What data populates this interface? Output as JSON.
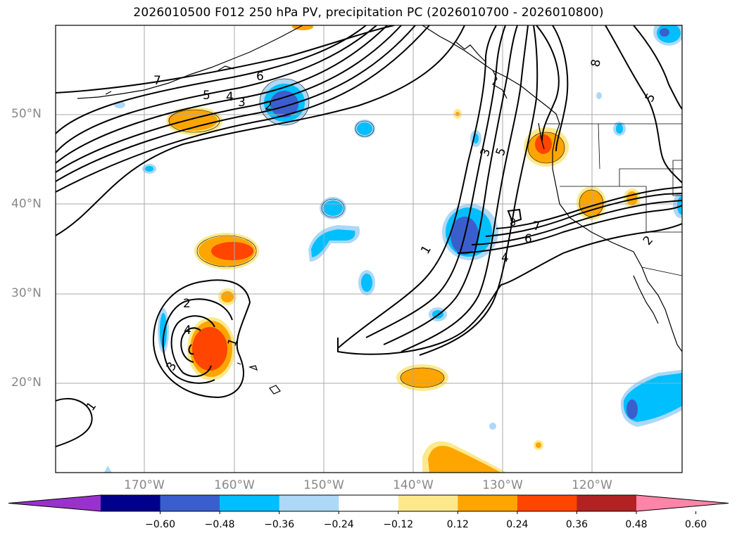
{
  "title": "2026010500 F012 250 hPa PV, precipitation PC (2026010700 - 2026010800)",
  "map": {
    "lat_labels": [
      "50°N",
      "40°N",
      "30°N",
      "20°N"
    ],
    "lon_labels": [
      "170°W",
      "160°W",
      "150°W",
      "140°W",
      "130°W",
      "120°W"
    ],
    "contour_labels": [
      "7",
      "6",
      "5",
      "4",
      "3",
      "2",
      "1",
      "2",
      "4",
      "3",
      "1",
      "1",
      "3",
      "5",
      "7",
      "6",
      "4",
      "8",
      "8",
      "5",
      "2"
    ]
  },
  "colorbar": {
    "ticks": [
      "−0.60",
      "−0.48",
      "−0.36",
      "−0.24",
      "−0.12",
      "0.12",
      "0.24",
      "0.36",
      "0.48",
      "0.60"
    ],
    "colors": [
      "#9932cc",
      "#00008b",
      "#3a5fcd",
      "#00bfff",
      "#add8f7",
      "#ffffff",
      "#fde98b",
      "#ffa500",
      "#ff4500",
      "#b22222",
      "#ff85a8"
    ]
  },
  "colors": {
    "neg_strong": "#3a5fcd",
    "neg_mid": "#00bfff",
    "neg_weak": "#add8f7",
    "pos_weak": "#fde98b",
    "pos_mid": "#ffa500",
    "pos_strong": "#ff4500",
    "grid": "#a9a9a9",
    "label_gray": "#888888"
  }
}
